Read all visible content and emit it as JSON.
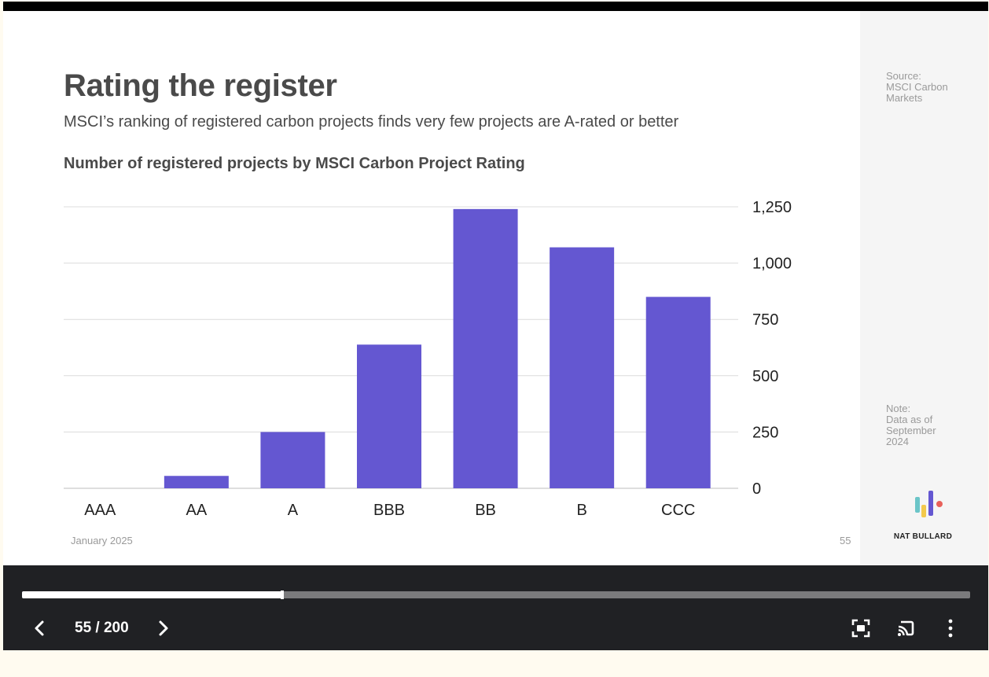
{
  "slide": {
    "title": "Rating the register",
    "subtitle": "MSCI’s ranking of registered carbon projects finds very few projects are A-rated or better",
    "chart_title": "Number of registered projects by MSCI Carbon Project Rating",
    "footer_date": "January 2025",
    "footer_page": "55",
    "source": "Source:\nMSCI Carbon\nMarkets",
    "note": "Note:\nData as of\nSeptember\n2024",
    "brand": "NAT BULLARD"
  },
  "chart_data": {
    "type": "bar",
    "categories": [
      "AAA",
      "AA",
      "A",
      "BBB",
      "BB",
      "B",
      "CCC"
    ],
    "values": [
      0,
      55,
      250,
      638,
      1240,
      1070,
      850
    ],
    "yticks": [
      0,
      250,
      500,
      750,
      1000,
      1250
    ],
    "ytick_labels": [
      "0",
      "250",
      "500",
      "750",
      "1,000",
      "1,250"
    ],
    "ylim": [
      0,
      1250
    ],
    "axis_side": "right",
    "grid": true,
    "bar_color": "#6457d1"
  },
  "player": {
    "page_counter": "55 / 200",
    "progress": 0.2745,
    "icons": {
      "prev": "chevron-left-icon",
      "next": "chevron-right-icon",
      "fullscreen": "fullscreen-icon",
      "cast": "cast-icon",
      "menu": "more-vertical-icon"
    }
  }
}
